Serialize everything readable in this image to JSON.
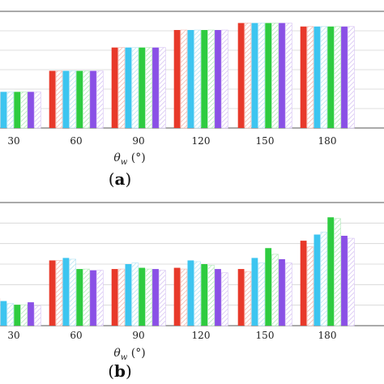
{
  "chart_data": [
    {
      "type": "bar",
      "panel_label": "(a)",
      "xlabel": "θw (°)",
      "categories": [
        "30",
        "60",
        "90",
        "120",
        "150",
        "180"
      ],
      "ylim": [
        0,
        1
      ],
      "grid": true,
      "series": [
        {
          "color": "#e8392a",
          "pattern": "solid",
          "values": [
            0.31,
            0.49,
            0.69,
            0.84,
            0.9,
            0.87
          ]
        },
        {
          "color": "#f3b7ae",
          "pattern": "hatched",
          "values": [
            0.31,
            0.49,
            0.69,
            0.84,
            0.9,
            0.87
          ]
        },
        {
          "color": "#3dc5f0",
          "pattern": "solid",
          "values": [
            0.31,
            0.49,
            0.69,
            0.84,
            0.9,
            0.87
          ]
        },
        {
          "color": "#b5e3f3",
          "pattern": "hatched",
          "values": [
            0.31,
            0.49,
            0.69,
            0.84,
            0.9,
            0.87
          ]
        },
        {
          "color": "#2ecc40",
          "pattern": "solid",
          "values": [
            0.31,
            0.49,
            0.69,
            0.84,
            0.9,
            0.87
          ]
        },
        {
          "color": "#b0e8b8",
          "pattern": "hatched",
          "values": [
            0.31,
            0.49,
            0.69,
            0.84,
            0.9,
            0.87
          ]
        },
        {
          "color": "#8a50e6",
          "pattern": "solid",
          "values": [
            0.31,
            0.49,
            0.69,
            0.84,
            0.9,
            0.87
          ]
        },
        {
          "color": "#d6c2f3",
          "pattern": "hatched",
          "values": [
            0.31,
            0.49,
            0.69,
            0.84,
            0.9,
            0.87
          ]
        }
      ]
    },
    {
      "type": "bar",
      "panel_label": "(b)",
      "xlabel": "θw (°)",
      "categories": [
        "30",
        "60",
        "90",
        "120",
        "150",
        "180"
      ],
      "ylim": [
        0,
        1
      ],
      "grid": true,
      "series": [
        {
          "color": "#e8392a",
          "pattern": "solid",
          "values": [
            0.24,
            0.53,
            0.46,
            0.47,
            0.46,
            0.69
          ]
        },
        {
          "color": "#f3b7ae",
          "pattern": "hatched",
          "values": [
            0.22,
            0.53,
            0.46,
            0.46,
            0.44,
            0.64
          ]
        },
        {
          "color": "#3dc5f0",
          "pattern": "solid",
          "values": [
            0.2,
            0.55,
            0.5,
            0.53,
            0.55,
            0.74
          ]
        },
        {
          "color": "#b5e3f3",
          "pattern": "hatched",
          "values": [
            0.18,
            0.54,
            0.51,
            0.52,
            0.51,
            0.76
          ]
        },
        {
          "color": "#2ecc40",
          "pattern": "solid",
          "values": [
            0.17,
            0.46,
            0.47,
            0.5,
            0.63,
            0.88
          ]
        },
        {
          "color": "#b0e8b8",
          "pattern": "hatched",
          "values": [
            0.17,
            0.46,
            0.46,
            0.49,
            0.58,
            0.87
          ]
        },
        {
          "color": "#8a50e6",
          "pattern": "solid",
          "values": [
            0.19,
            0.45,
            0.46,
            0.46,
            0.54,
            0.73
          ]
        },
        {
          "color": "#d6c2f3",
          "pattern": "hatched",
          "values": [
            0.16,
            0.45,
            0.45,
            0.43,
            0.51,
            0.71
          ]
        }
      ]
    }
  ]
}
